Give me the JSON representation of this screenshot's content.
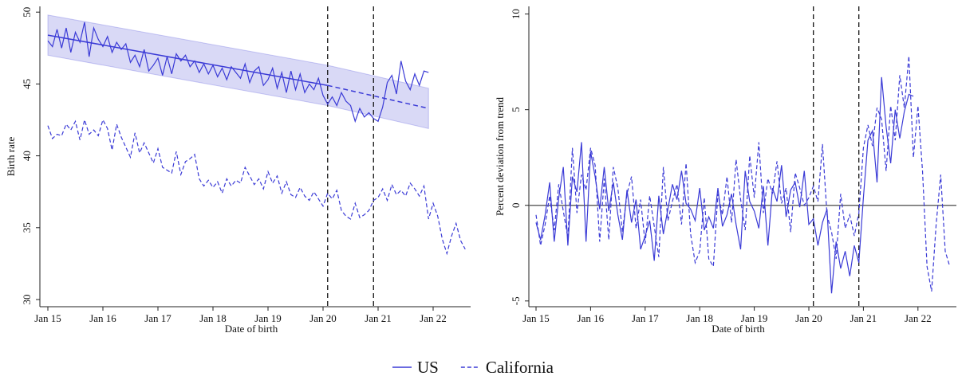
{
  "chart_data": [
    {
      "type": "line",
      "x_label": "Date of birth",
      "y_label": "Birth rate",
      "x": [
        "Jan 15",
        "Feb 15",
        "Mar 15",
        "Apr 15",
        "May 15",
        "Jun 15",
        "Jul 15",
        "Aug 15",
        "Sep 15",
        "Oct 15",
        "Nov 15",
        "Dec 15",
        "Jan 16",
        "Feb 16",
        "Mar 16",
        "Apr 16",
        "May 16",
        "Jun 16",
        "Jul 16",
        "Aug 16",
        "Sep 16",
        "Oct 16",
        "Nov 16",
        "Dec 16",
        "Jan 17",
        "Feb 17",
        "Mar 17",
        "Apr 17",
        "May 17",
        "Jun 17",
        "Jul 17",
        "Aug 17",
        "Sep 17",
        "Oct 17",
        "Nov 17",
        "Dec 17",
        "Jan 18",
        "Feb 18",
        "Mar 18",
        "Apr 18",
        "May 18",
        "Jun 18",
        "Jul 18",
        "Aug 18",
        "Sep 18",
        "Oct 18",
        "Nov 18",
        "Dec 18",
        "Jan 19",
        "Feb 19",
        "Mar 19",
        "Apr 19",
        "May 19",
        "Jun 19",
        "Jul 19",
        "Aug 19",
        "Sep 19",
        "Oct 19",
        "Nov 19",
        "Dec 19",
        "Jan 20",
        "Feb 20",
        "Mar 20",
        "Apr 20",
        "May 20",
        "Jun 20",
        "Jul 20",
        "Aug 20",
        "Sep 20",
        "Oct 20",
        "Nov 20",
        "Dec 20",
        "Jan 21",
        "Feb 21",
        "Mar 21",
        "Apr 21",
        "May 21",
        "Jun 21",
        "Jul 21",
        "Aug 21",
        "Sep 21",
        "Oct 21",
        "Nov 21",
        "Dec 21",
        "Jan 22",
        "Feb 22",
        "Mar 22",
        "Apr 22",
        "May 22",
        "Jun 22",
        "Jul 22",
        "Aug 22"
      ],
      "xticks": [
        "Jan 15",
        "Jan 16",
        "Jan 17",
        "Jan 18",
        "Jan 19",
        "Jan 20",
        "Jan 21",
        "Jan 22"
      ],
      "ylim": [
        29.5,
        50.4
      ],
      "yticks": [
        30,
        35,
        40,
        45,
        50
      ],
      "vlines": [
        "Feb 20",
        "Dec 20"
      ],
      "trend": {
        "x": [
          "Jan 15",
          "Feb 20",
          "Dec 21"
        ],
        "values": [
          48.4,
          44.9,
          43.3
        ],
        "upper": [
          49.8,
          46.3,
          44.7
        ],
        "lower": [
          47.0,
          43.5,
          41.9
        ],
        "color": "#3a3ad6",
        "band_color": "#c9c9f2"
      },
      "series": [
        {
          "name": "US",
          "color": "#3a3ad6",
          "dashed": false,
          "values": [
            48.0,
            47.6,
            48.8,
            47.5,
            48.9,
            47.2,
            48.6,
            47.9,
            49.3,
            46.9,
            48.9,
            48.1,
            47.6,
            48.3,
            47.2,
            47.9,
            47.4,
            47.8,
            46.5,
            47.0,
            46.2,
            47.4,
            45.9,
            46.3,
            46.8,
            45.6,
            46.9,
            45.7,
            47.1,
            46.6,
            47.0,
            46.2,
            46.6,
            45.8,
            46.4,
            45.7,
            46.3,
            45.5,
            46.1,
            45.3,
            46.2,
            45.8,
            45.4,
            46.4,
            45.1,
            45.9,
            46.2,
            44.9,
            45.3,
            46.1,
            44.7,
            45.8,
            44.4,
            45.9,
            44.6,
            45.7,
            44.4,
            45.0,
            44.6,
            45.4,
            44.2,
            43.6,
            44.1,
            43.5,
            44.4,
            43.8,
            43.5,
            42.4,
            43.3,
            42.7,
            43.0,
            42.6,
            42.4,
            43.4,
            45.1,
            45.6,
            44.3,
            46.6,
            45.2,
            44.6,
            45.7,
            44.9,
            45.9,
            45.8,
            null,
            null,
            null,
            null,
            null,
            null,
            null,
            null
          ]
        },
        {
          "name": "California",
          "color": "#3a3ad6",
          "dashed": true,
          "values": [
            42.1,
            41.2,
            41.5,
            41.4,
            42.2,
            41.8,
            42.4,
            41.1,
            42.5,
            41.5,
            41.8,
            41.4,
            42.5,
            41.9,
            40.4,
            42.2,
            41.3,
            40.6,
            39.9,
            41.6,
            40.2,
            40.9,
            40.2,
            39.5,
            40.5,
            39.2,
            39.0,
            38.8,
            40.3,
            38.7,
            39.6,
            39.8,
            40.1,
            38.4,
            37.9,
            38.3,
            37.8,
            38.2,
            37.4,
            38.4,
            37.9,
            38.3,
            38.1,
            39.2,
            38.6,
            38.0,
            38.4,
            37.7,
            38.9,
            38.1,
            38.6,
            37.4,
            38.2,
            37.3,
            37.1,
            37.8,
            37.2,
            36.9,
            37.5,
            37.0,
            36.5,
            37.4,
            37.0,
            37.6,
            36.2,
            35.8,
            35.6,
            36.7,
            35.7,
            35.9,
            36.2,
            36.9,
            37.1,
            37.7,
            36.9,
            38.0,
            37.3,
            37.6,
            37.2,
            38.1,
            37.7,
            37.2,
            37.9,
            35.6,
            36.7,
            35.8,
            34.2,
            33.2,
            34.4,
            35.3,
            34.1,
            33.5
          ]
        }
      ]
    },
    {
      "type": "line",
      "x_label": "Date of birth",
      "y_label": "Percent deviation from trend",
      "x": [
        "Jan 15",
        "Feb 15",
        "Mar 15",
        "Apr 15",
        "May 15",
        "Jun 15",
        "Jul 15",
        "Aug 15",
        "Sep 15",
        "Oct 15",
        "Nov 15",
        "Dec 15",
        "Jan 16",
        "Feb 16",
        "Mar 16",
        "Apr 16",
        "May 16",
        "Jun 16",
        "Jul 16",
        "Aug 16",
        "Sep 16",
        "Oct 16",
        "Nov 16",
        "Dec 16",
        "Jan 17",
        "Feb 17",
        "Mar 17",
        "Apr 17",
        "May 17",
        "Jun 17",
        "Jul 17",
        "Aug 17",
        "Sep 17",
        "Oct 17",
        "Nov 17",
        "Dec 17",
        "Jan 18",
        "Feb 18",
        "Mar 18",
        "Apr 18",
        "May 18",
        "Jun 18",
        "Jul 18",
        "Aug 18",
        "Sep 18",
        "Oct 18",
        "Nov 18",
        "Dec 18",
        "Jan 19",
        "Feb 19",
        "Mar 19",
        "Apr 19",
        "May 19",
        "Jun 19",
        "Jul 19",
        "Aug 19",
        "Sep 19",
        "Oct 19",
        "Nov 19",
        "Dec 19",
        "Jan 20",
        "Feb 20",
        "Mar 20",
        "Apr 20",
        "May 20",
        "Jun 20",
        "Jul 20",
        "Aug 20",
        "Sep 20",
        "Oct 20",
        "Nov 20",
        "Dec 20",
        "Jan 21",
        "Feb 21",
        "Mar 21",
        "Apr 21",
        "May 21",
        "Jun 21",
        "Jul 21",
        "Aug 21",
        "Sep 21",
        "Oct 21",
        "Nov 21",
        "Dec 21",
        "Jan 22",
        "Feb 22",
        "Mar 22",
        "Apr 22",
        "May 22",
        "Jun 22",
        "Jul 22",
        "Aug 22"
      ],
      "xticks": [
        "Jan 15",
        "Jan 16",
        "Jan 17",
        "Jan 18",
        "Jan 19",
        "Jan 20",
        "Jan 21",
        "Jan 22"
      ],
      "ylim": [
        -5.3,
        10.4
      ],
      "yticks": [
        -5,
        0,
        5,
        10
      ],
      "vlines": [
        "Feb 20",
        "Dec 20"
      ],
      "hline": 0,
      "series": [
        {
          "color": "#3a3ad6",
          "dashed": false,
          "values": [
            -0.9,
            -1.8,
            -0.5,
            1.2,
            -1.9,
            0.4,
            2.0,
            -2.1,
            1.5,
            0.7,
            3.3,
            -1.9,
            2.8,
            1.5,
            -0.2,
            2.0,
            -0.3,
            1.2,
            -0.5,
            -1.8,
            0.8,
            -0.9,
            0.3,
            -2.3,
            -1.6,
            -0.8,
            -2.9,
            0.5,
            -1.5,
            -0.2,
            1.1,
            0.3,
            1.8,
            0.1,
            -0.2,
            -0.8,
            0.9,
            -1.3,
            -0.6,
            -1.2,
            0.9,
            -1.1,
            -0.5,
            0.6,
            -1.0,
            -2.3,
            1.8,
            0.2,
            -0.3,
            -1.2,
            1.0,
            -2.1,
            0.9,
            0.2,
            2.1,
            -0.6,
            0.8,
            1.2,
            -0.1,
            1.8,
            -1.0,
            -0.7,
            -2.1,
            -0.9,
            -0.2,
            -4.6,
            -1.9,
            -3.3,
            -2.4,
            -3.7,
            -2.1,
            -3.0,
            0.4,
            3.4,
            3.9,
            1.2,
            6.7,
            4.1,
            2.2,
            5.0,
            3.5,
            4.9,
            5.8,
            5.7,
            null,
            null,
            null,
            null,
            null,
            null,
            null,
            null
          ]
        },
        {
          "color": "#3a3ad6",
          "dashed": true,
          "values": [
            -0.5,
            -2.1,
            -1.0,
            0.5,
            -1.3,
            1.1,
            -0.3,
            -1.7,
            3.0,
            -0.4,
            1.6,
            0.8,
            3.0,
            2.1,
            -1.9,
            1.4,
            -1.8,
            2.0,
            0.9,
            -1.4,
            0.6,
            1.5,
            -1.2,
            0.3,
            -2.0,
            0.5,
            -1.1,
            -2.7,
            2.0,
            -0.8,
            0.2,
            1.1,
            -1.0,
            2.2,
            -1.5,
            -3.0,
            -2.4,
            0.4,
            -2.8,
            -3.2,
            0.6,
            -0.5,
            1.5,
            -0.9,
            2.4,
            0.3,
            -1.3,
            2.6,
            0.4,
            3.3,
            -0.4,
            1.4,
            0.6,
            2.3,
            0.1,
            0.9,
            -1.4,
            1.7,
            0.9,
            0.0,
            0.4,
            1.0,
            0.2,
            3.2,
            -0.5,
            -1.4,
            -2.8,
            0.6,
            -1.2,
            -0.5,
            -1.6,
            -0.4,
            3.0,
            4.2,
            3.1,
            5.1,
            4.5,
            1.8,
            5.2,
            3.4,
            6.8,
            5.1,
            7.8,
            2.5,
            5.2,
            1.8,
            -3.2,
            -4.5,
            -1.0,
            1.6,
            -2.4,
            -3.2
          ]
        }
      ]
    }
  ]
}
